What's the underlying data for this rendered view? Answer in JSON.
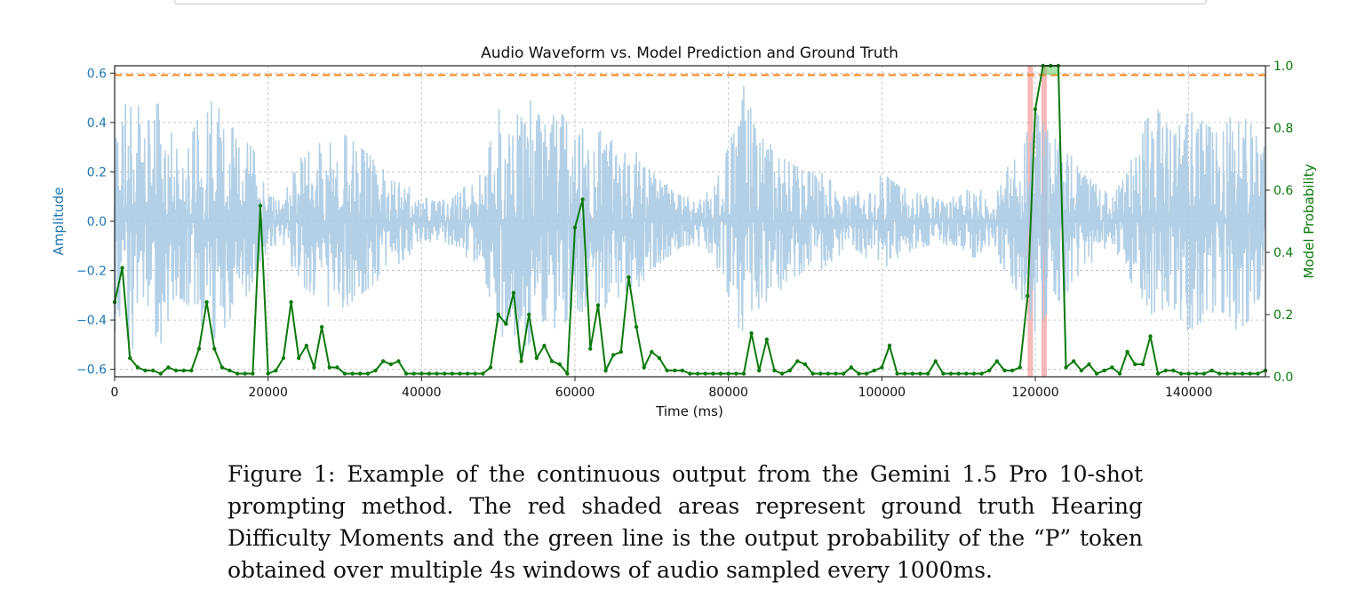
{
  "figure": {
    "caption": "Figure 1: Example of the continuous output from the Gemini 1.5 Pro 10-shot prompting method. The red shaded areas represent ground truth Hearing Difficulty Moments and the green line is the output probability of the “P” token obtained over multiple 4s windows of audio sampled every 1000ms."
  },
  "chart_data": {
    "type": "line",
    "title": "Audio Waveform vs. Model Prediction and Ground Truth",
    "xlabel": "Time (ms)",
    "ylabel_left": "Amplitude",
    "ylabel_right": "Model Probability",
    "xlim": [
      0,
      150000
    ],
    "ylim_left": [
      -0.63,
      0.63
    ],
    "ylim_right": [
      0,
      1.0
    ],
    "x_ticks": [
      0,
      20000,
      40000,
      60000,
      80000,
      100000,
      120000,
      140000
    ],
    "left_ticks": [
      0.6,
      0.4,
      0.2,
      0.0,
      -0.2,
      -0.4,
      -0.6
    ],
    "left_tick_labels": [
      "0.6",
      "0.4",
      "0.2",
      "0.0",
      "−0.2",
      "−0.4",
      "−0.6"
    ],
    "right_ticks": [
      1.0,
      0.8,
      0.6,
      0.4,
      0.2,
      0.0
    ],
    "grid": true,
    "colors": {
      "waveform": "#a6c8e2",
      "prediction": "#0b7a0b",
      "threshold": "#ff7f0e",
      "ground_truth": "#f08080",
      "left_axis": "#1f77b4",
      "right_axis": "#0b7a0b"
    },
    "threshold": 0.97,
    "ground_truth_regions": [
      [
        119000,
        119700
      ],
      [
        120800,
        121500
      ]
    ],
    "waveform_envelope": [
      [
        0,
        0.45
      ],
      [
        2000,
        0.55
      ],
      [
        4000,
        0.4
      ],
      [
        6000,
        0.5
      ],
      [
        8000,
        0.3
      ],
      [
        10000,
        0.35
      ],
      [
        12000,
        0.5
      ],
      [
        14000,
        0.45
      ],
      [
        16000,
        0.35
      ],
      [
        18000,
        0.3
      ],
      [
        20000,
        0.1
      ],
      [
        22000,
        0.1
      ],
      [
        24000,
        0.25
      ],
      [
        26000,
        0.3
      ],
      [
        28000,
        0.35
      ],
      [
        30000,
        0.35
      ],
      [
        32000,
        0.3
      ],
      [
        34000,
        0.25
      ],
      [
        36000,
        0.2
      ],
      [
        38000,
        0.15
      ],
      [
        40000,
        0.1
      ],
      [
        42000,
        0.08
      ],
      [
        44000,
        0.1
      ],
      [
        46000,
        0.15
      ],
      [
        48000,
        0.2
      ],
      [
        50000,
        0.45
      ],
      [
        52000,
        0.55
      ],
      [
        54000,
        0.5
      ],
      [
        56000,
        0.4
      ],
      [
        58000,
        0.45
      ],
      [
        60000,
        0.35
      ],
      [
        62000,
        0.4
      ],
      [
        64000,
        0.35
      ],
      [
        66000,
        0.3
      ],
      [
        68000,
        0.28
      ],
      [
        70000,
        0.2
      ],
      [
        72000,
        0.15
      ],
      [
        74000,
        0.1
      ],
      [
        76000,
        0.1
      ],
      [
        78000,
        0.15
      ],
      [
        80000,
        0.3
      ],
      [
        82000,
        0.55
      ],
      [
        84000,
        0.35
      ],
      [
        86000,
        0.3
      ],
      [
        88000,
        0.25
      ],
      [
        90000,
        0.2
      ],
      [
        92000,
        0.2
      ],
      [
        94000,
        0.15
      ],
      [
        96000,
        0.1
      ],
      [
        98000,
        0.15
      ],
      [
        100000,
        0.2
      ],
      [
        102000,
        0.15
      ],
      [
        104000,
        0.12
      ],
      [
        106000,
        0.1
      ],
      [
        108000,
        0.1
      ],
      [
        110000,
        0.1
      ],
      [
        112000,
        0.15
      ],
      [
        114000,
        0.1
      ],
      [
        116000,
        0.2
      ],
      [
        118000,
        0.3
      ],
      [
        120000,
        0.45
      ],
      [
        122000,
        0.35
      ],
      [
        124000,
        0.3
      ],
      [
        126000,
        0.2
      ],
      [
        128000,
        0.15
      ],
      [
        130000,
        0.1
      ],
      [
        132000,
        0.2
      ],
      [
        134000,
        0.4
      ],
      [
        136000,
        0.45
      ],
      [
        138000,
        0.35
      ],
      [
        140000,
        0.45
      ],
      [
        142000,
        0.4
      ],
      [
        144000,
        0.35
      ],
      [
        146000,
        0.45
      ],
      [
        148000,
        0.4
      ],
      [
        150000,
        0.3
      ]
    ],
    "series": [
      {
        "name": "",
        "x": [
          0,
          1000,
          2000,
          3000,
          4000,
          5000,
          6000,
          7000,
          8000,
          9000,
          10000,
          11000,
          12000,
          13000,
          14000,
          15000,
          16000,
          17000,
          18000,
          19000,
          20000,
          21000,
          22000,
          23000,
          24000,
          25000,
          26000,
          27000,
          28000,
          29000,
          30000,
          31000,
          32000,
          33000,
          34000,
          35000,
          36000,
          37000,
          38000,
          39000,
          40000,
          41000,
          42000,
          43000,
          44000,
          45000,
          46000,
          47000,
          48000,
          49000,
          50000,
          51000,
          52000,
          53000,
          54000,
          55000,
          56000,
          57000,
          58000,
          59000,
          60000,
          61000,
          62000,
          63000,
          64000,
          65000,
          66000,
          67000,
          68000,
          69000,
          70000,
          71000,
          72000,
          73000,
          74000,
          75000,
          76000,
          77000,
          78000,
          79000,
          80000,
          81000,
          82000,
          83000,
          84000,
          85000,
          86000,
          87000,
          88000,
          89000,
          90000,
          91000,
          92000,
          93000,
          94000,
          95000,
          96000,
          97000,
          98000,
          99000,
          100000,
          101000,
          102000,
          103000,
          104000,
          105000,
          106000,
          107000,
          108000,
          109000,
          110000,
          111000,
          112000,
          113000,
          114000,
          115000,
          116000,
          117000,
          118000,
          119000,
          120000,
          121000,
          122000,
          123000,
          124000,
          125000,
          126000,
          127000,
          128000,
          129000,
          130000,
          131000,
          132000,
          133000,
          134000,
          135000,
          136000,
          137000,
          138000,
          139000,
          140000,
          141000,
          142000,
          143000,
          144000,
          145000,
          146000,
          147000,
          148000,
          149000,
          150000
        ],
        "values": [
          0.24,
          0.35,
          0.06,
          0.03,
          0.02,
          0.02,
          0.01,
          0.03,
          0.02,
          0.02,
          0.02,
          0.09,
          0.24,
          0.09,
          0.03,
          0.02,
          0.01,
          0.01,
          0.01,
          0.55,
          0.01,
          0.02,
          0.06,
          0.24,
          0.06,
          0.1,
          0.03,
          0.16,
          0.03,
          0.03,
          0.01,
          0.01,
          0.01,
          0.01,
          0.02,
          0.05,
          0.04,
          0.05,
          0.01,
          0.01,
          0.01,
          0.01,
          0.01,
          0.01,
          0.01,
          0.01,
          0.01,
          0.01,
          0.01,
          0.03,
          0.2,
          0.17,
          0.27,
          0.05,
          0.2,
          0.06,
          0.1,
          0.05,
          0.04,
          0.01,
          0.48,
          0.57,
          0.09,
          0.23,
          0.02,
          0.07,
          0.08,
          0.32,
          0.16,
          0.03,
          0.08,
          0.06,
          0.02,
          0.02,
          0.02,
          0.01,
          0.01,
          0.01,
          0.01,
          0.01,
          0.01,
          0.01,
          0.01,
          0.14,
          0.02,
          0.12,
          0.02,
          0.01,
          0.02,
          0.05,
          0.04,
          0.01,
          0.01,
          0.01,
          0.01,
          0.01,
          0.03,
          0.01,
          0.01,
          0.02,
          0.03,
          0.1,
          0.01,
          0.01,
          0.01,
          0.01,
          0.01,
          0.05,
          0.01,
          0.01,
          0.01,
          0.01,
          0.01,
          0.01,
          0.02,
          0.05,
          0.02,
          0.02,
          0.03,
          0.26,
          0.86,
          1.0,
          1.0,
          1.0,
          0.03,
          0.05,
          0.02,
          0.04,
          0.01,
          0.02,
          0.03,
          0.01,
          0.08,
          0.04,
          0.04,
          0.13,
          0.01,
          0.02,
          0.02,
          0.01,
          0.01,
          0.01,
          0.01,
          0.02,
          0.01,
          0.01,
          0.01,
          0.01,
          0.01,
          0.01,
          0.02
        ]
      }
    ]
  }
}
